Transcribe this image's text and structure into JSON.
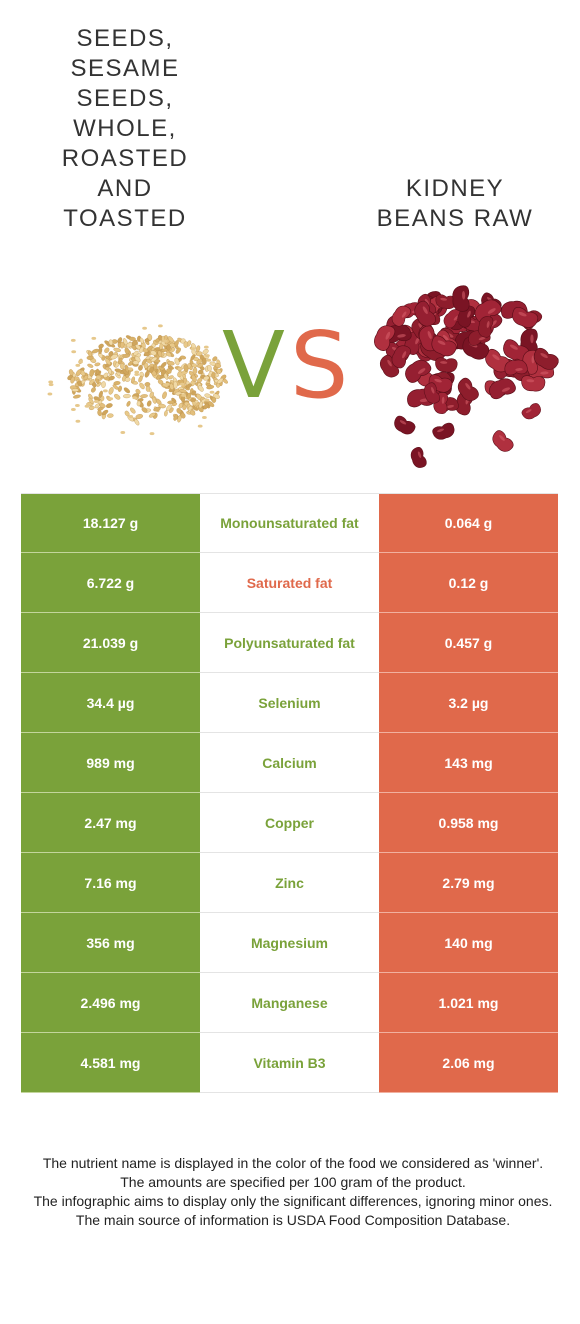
{
  "left_food": {
    "title": "SEEDS,\nSESAME\nSEEDS,\nWHOLE,\nROASTED\nAND\nTOASTED"
  },
  "right_food": {
    "title": "KIDNEY\nBEANS RAW"
  },
  "vs": {
    "v": "V",
    "s": "S"
  },
  "colors": {
    "left": "#7aa23a",
    "right": "#e0694b"
  },
  "rows": [
    {
      "left": "18.127 g",
      "nutrient": "Monounsaturated fat",
      "right": "0.064 g",
      "winner": "left"
    },
    {
      "left": "6.722 g",
      "nutrient": "Saturated fat",
      "right": "0.12 g",
      "winner": "right"
    },
    {
      "left": "21.039 g",
      "nutrient": "Polyunsaturated fat",
      "right": "0.457 g",
      "winner": "left"
    },
    {
      "left": "34.4 µg",
      "nutrient": "Selenium",
      "right": "3.2 µg",
      "winner": "left"
    },
    {
      "left": "989 mg",
      "nutrient": "Calcium",
      "right": "143 mg",
      "winner": "left"
    },
    {
      "left": "2.47 mg",
      "nutrient": "Copper",
      "right": "0.958 mg",
      "winner": "left"
    },
    {
      "left": "7.16 mg",
      "nutrient": "Zinc",
      "right": "2.79 mg",
      "winner": "left"
    },
    {
      "left": "356 mg",
      "nutrient": "Magnesium",
      "right": "140 mg",
      "winner": "left"
    },
    {
      "left": "2.496 mg",
      "nutrient": "Manganese",
      "right": "1.021 mg",
      "winner": "left"
    },
    {
      "left": "4.581 mg",
      "nutrient": "Vitamin B3",
      "right": "2.06 mg",
      "winner": "left"
    }
  ],
  "footer": [
    "The nutrient name is displayed in the color of the food we considered as 'winner'.",
    "The amounts are specified per 100 gram of the product.",
    "The infographic aims to display only the significant differences, ignoring minor ones.",
    "The main source of information is USDA Food Composition Database."
  ]
}
